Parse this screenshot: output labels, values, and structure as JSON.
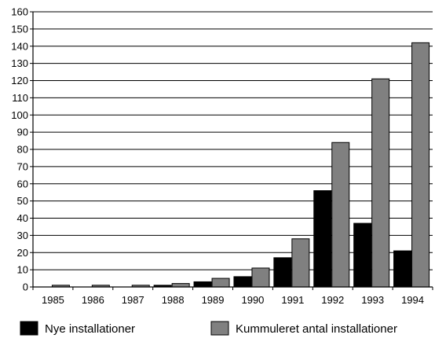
{
  "chart_data": {
    "type": "bar",
    "title": "",
    "xlabel": "",
    "ylabel": "",
    "categories": [
      "1985",
      "1986",
      "1987",
      "1988",
      "1989",
      "1990",
      "1991",
      "1992",
      "1993",
      "1994"
    ],
    "series": [
      {
        "name": "Nye installationer",
        "color": "#000000",
        "values": [
          0,
          0,
          0,
          1,
          3,
          6,
          17,
          56,
          37,
          21
        ]
      },
      {
        "name": "Kummuleret antal installationer",
        "color": "#808080",
        "values": [
          1,
          1,
          1,
          2,
          5,
          11,
          28,
          84,
          121,
          142
        ]
      }
    ],
    "ylim": [
      0,
      160
    ],
    "yticks": [
      0,
      10,
      20,
      30,
      40,
      50,
      60,
      70,
      80,
      90,
      100,
      110,
      120,
      130,
      140,
      150,
      160
    ],
    "grid": true,
    "legend_position": "bottom"
  }
}
